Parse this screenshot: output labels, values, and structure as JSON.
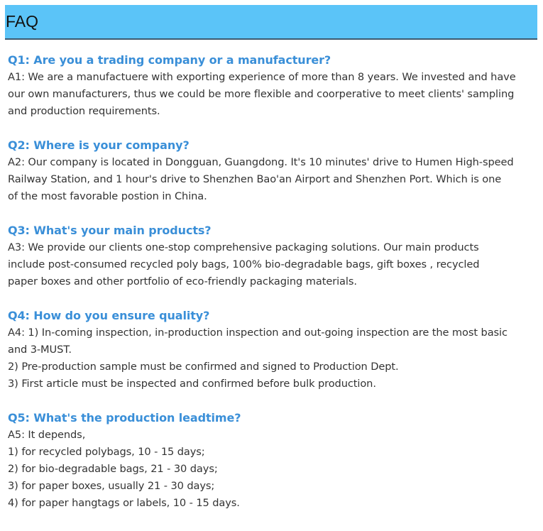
{
  "header": {
    "title": "FAQ"
  },
  "colors": {
    "header_bg": "#5bc4f8",
    "question": "#3a8fd8",
    "answer": "#333333"
  },
  "faq": [
    {
      "question": "Q1: Are you a trading company or a manufacturer?",
      "answer": [
        "A1: We are a manufactuere with exporting experience of more than 8 years. We invested and have",
        "our own manufacturers, thus we could be more flexible and coorperative to meet clients' sampling",
        "and production requirements."
      ]
    },
    {
      "question": "Q2: Where is your company?",
      "answer": [
        "A2: Our company is located in Dongguan, Guangdong. It's 10 minutes' drive to Humen High-speed",
        "Railway Station, and 1 hour's drive to Shenzhen Bao'an Airport and Shenzhen Port. Which is one",
        "of the most favorable postion in China."
      ]
    },
    {
      "question": "Q3: What's your main products?",
      "answer": [
        "A3: We provide our clients one-stop comprehensive packaging solutions. Our main products",
        "include post-consumed recycled poly bags, 100% bio-degradable bags, gift boxes , recycled",
        "paper boxes and other portfolio of eco-friendly packaging materials."
      ]
    },
    {
      "question": "Q4: How do you ensure quality?",
      "answer": [
        "A4: 1) In-coming inspection, in-production inspection and out-going inspection are the most basic",
        "and 3-MUST.",
        "2) Pre-production sample must be confirmed and signed to Production Dept.",
        "3) First article must be inspected and confirmed before bulk production."
      ]
    },
    {
      "question": "Q5: What's the production leadtime?",
      "answer": [
        "A5: It depends,",
        "1) for recycled polybags, 10 - 15 days;",
        "2) for bio-degradable bags, 21 - 30 days;",
        "3) for paper boxes, usually 21 - 30 days;",
        "4) for paper hangtags or labels, 10 - 15 days."
      ]
    }
  ]
}
